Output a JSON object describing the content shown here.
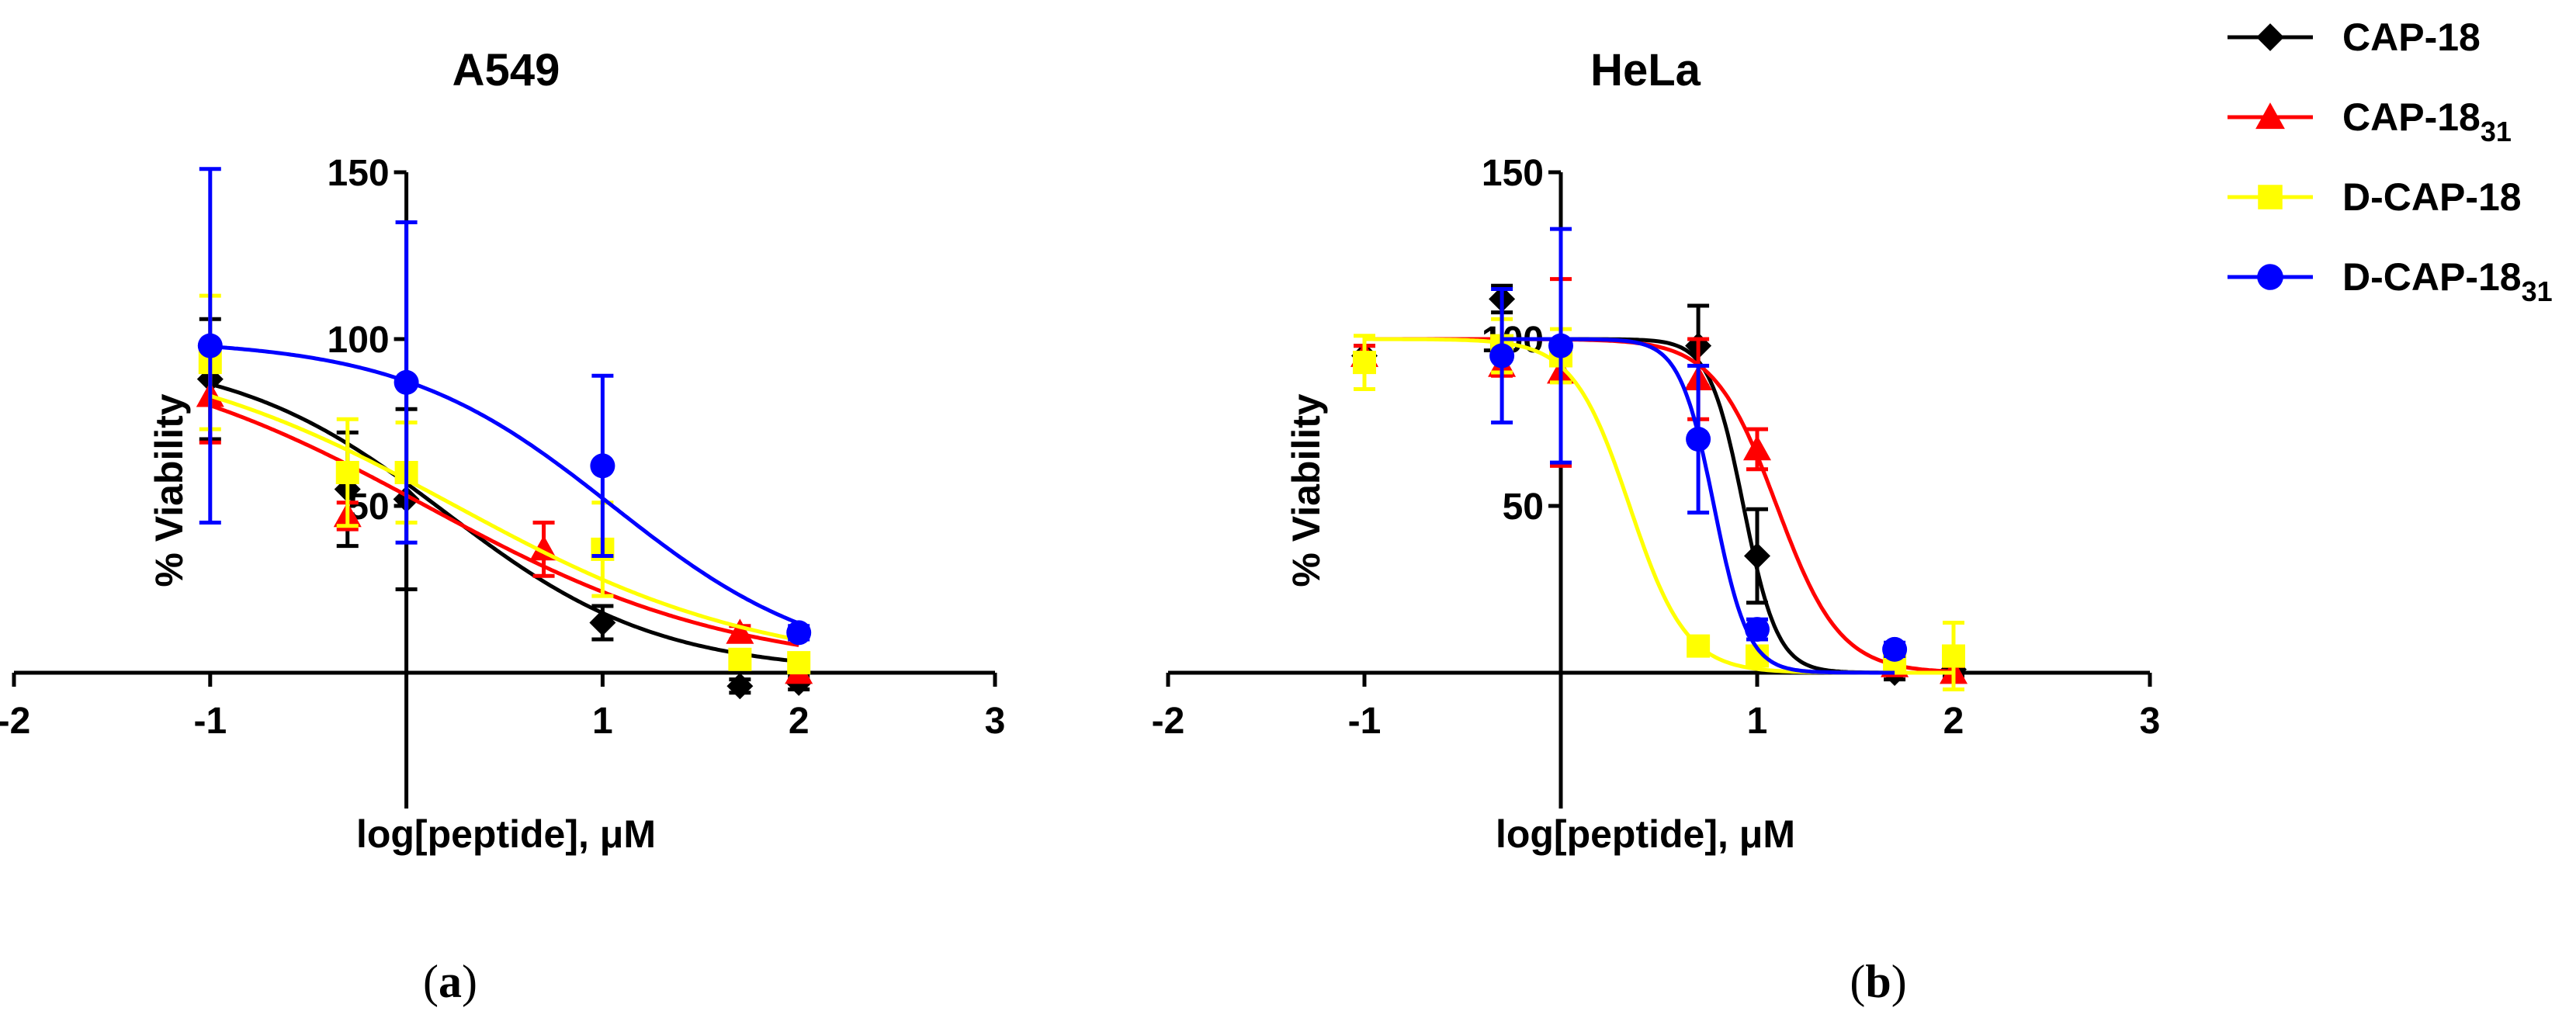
{
  "chart_data": [
    {
      "type": "scatter",
      "panel_label": "a",
      "title": "A549",
      "xlabel": "log[peptide], μM",
      "ylabel": "% Viability",
      "xlim": [
        -2,
        3
      ],
      "ylim": [
        0,
        150
      ],
      "xticks": [
        "-2",
        "-1",
        "1",
        "2",
        "3"
      ],
      "yticks": [
        "50",
        "100",
        "150"
      ],
      "series": [
        {
          "key": "cap18",
          "color": "#000000",
          "marker": "diamond",
          "x": [
            -1,
            -0.3,
            0,
            1,
            1.7,
            2
          ],
          "y": [
            88,
            55,
            52,
            15,
            -4,
            -3
          ],
          "err": [
            18,
            17,
            27,
            5,
            2,
            2
          ],
          "fit": {
            "top": 96,
            "bottom": 0,
            "logIC50": 0.2,
            "hill": 0.8
          }
        },
        {
          "key": "cap18_31",
          "color": "#ff0000",
          "marker": "triangle",
          "x": [
            -1,
            -0.3,
            0.7,
            1.7,
            2
          ],
          "y": [
            83,
            47,
            37,
            12,
            0
          ],
          "err": [
            14,
            4,
            8,
            2,
            2
          ],
          "fit": {
            "top": 100,
            "bottom": 0,
            "logIC50": 0.1,
            "hill": 0.55
          }
        },
        {
          "key": "dcap18",
          "color": "#ffff00",
          "marker": "square",
          "x": [
            -1,
            -0.3,
            0,
            1,
            1.7,
            2
          ],
          "y": [
            93,
            60,
            60,
            37,
            4,
            3
          ],
          "err": [
            20,
            16,
            15,
            14,
            2,
            2
          ],
          "fit": {
            "top": 100,
            "bottom": 0,
            "logIC50": 0.25,
            "hill": 0.55
          }
        },
        {
          "key": "dcap18_31",
          "color": "#0000ff",
          "marker": "circle",
          "x": [
            -1,
            0,
            1,
            2
          ],
          "y": [
            98,
            87,
            62,
            12
          ],
          "err": [
            53,
            48,
            27,
            2
          ],
          "fit": {
            "top": 100,
            "bottom": 0,
            "logIC50": 1.05,
            "hill": 0.8
          }
        }
      ]
    },
    {
      "type": "scatter",
      "panel_label": "b",
      "title": "HeLa",
      "xlabel": "log[peptide], μM",
      "ylabel": "% Viability",
      "xlim": [
        -2,
        3
      ],
      "ylim": [
        0,
        150
      ],
      "xticks": [
        "-2",
        "-1",
        "1",
        "2",
        "3"
      ],
      "yticks": [
        "50",
        "100",
        "150"
      ],
      "series": [
        {
          "key": "cap18",
          "color": "#000000",
          "marker": "diamond",
          "x": [
            -1,
            -0.3,
            0.7,
            1,
            1.7,
            2
          ],
          "y": [
            95,
            112,
            98,
            35,
            0,
            1
          ],
          "err": [
            3,
            4,
            12,
            14,
            2,
            2
          ],
          "fit": {
            "top": 100,
            "bottom": 0,
            "logIC50": 0.93,
            "hill": 5
          }
        },
        {
          "key": "cap18_31",
          "color": "#ff0000",
          "marker": "triangle",
          "x": [
            -1,
            -0.3,
            0,
            0.7,
            1,
            1.7,
            2
          ],
          "y": [
            95,
            92,
            90,
            88,
            67,
            2,
            0
          ],
          "err": [
            3,
            3,
            28,
            12,
            6,
            2,
            2
          ],
          "fit": {
            "top": 100,
            "bottom": 0,
            "logIC50": 1.1,
            "hill": 2.7
          }
        },
        {
          "key": "dcap18",
          "color": "#ffff00",
          "marker": "square",
          "x": [
            -1,
            -0.3,
            0,
            0.7,
            1,
            1.7,
            2
          ],
          "y": [
            93,
            98,
            95,
            8,
            5,
            4,
            5
          ],
          "err": [
            8,
            8,
            8,
            2,
            2,
            2,
            10
          ],
          "fit": {
            "top": 100,
            "bottom": 0,
            "logIC50": 0.35,
            "hill": 3
          }
        },
        {
          "key": "dcap18_31",
          "color": "#0000ff",
          "marker": "circle",
          "x": [
            -0.3,
            0,
            0.7,
            1,
            1.7
          ],
          "y": [
            95,
            98,
            70,
            13,
            7
          ],
          "err": [
            20,
            35,
            22,
            3,
            2
          ],
          "fit": {
            "top": 100,
            "bottom": 0,
            "logIC50": 0.78,
            "hill": 5
          }
        }
      ]
    }
  ],
  "legend": [
    {
      "key": "cap18",
      "label": "CAP-18",
      "sub": "",
      "color": "#000000",
      "marker": "diamond"
    },
    {
      "key": "cap18_31",
      "label": "CAP-18",
      "sub": "31",
      "color": "#ff0000",
      "marker": "triangle"
    },
    {
      "key": "dcap18",
      "label": "D-CAP-18",
      "sub": "",
      "color": "#ffff00",
      "marker": "square"
    },
    {
      "key": "dcap18_31",
      "label": "D-CAP-18",
      "sub": "31",
      "color": "#0000ff",
      "marker": "circle"
    }
  ]
}
